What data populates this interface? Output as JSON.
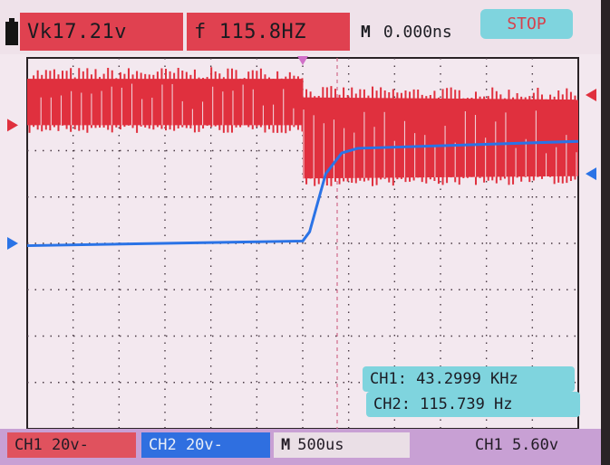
{
  "header": {
    "vk": "Vk17.21v",
    "freq_symbol": "f",
    "freq": "115.8HZ",
    "m_label": "M",
    "m_value": "0.000ns",
    "stop_label": "STOP"
  },
  "readouts": {
    "ch1": "CH1: 43.2999 KHz",
    "ch2": "CH2: 115.739 Hz"
  },
  "footer": {
    "ch1_scale": "CH1 20v-",
    "ch2_scale": "CH2 20v-",
    "m_label": "M",
    "timebase": "500us",
    "trigger": "CH1 5.60v"
  },
  "colors": {
    "ch1": "#e0303e",
    "ch2": "#2a73e6",
    "readout_bg": "#7fd4de",
    "screen_bg": "#f3e8ef",
    "footer_bg": "#c8a0d4",
    "ch2_box": "#2f6fe0"
  },
  "chart_data": {
    "type": "line",
    "grid": true,
    "series": [
      {
        "name": "CH1",
        "x_divisions": [
          0,
          6,
          6,
          12
        ],
        "top_divisions": [
          3.55,
          3.55,
          3.15,
          3.1
        ],
        "bottom_divisions": [
          2.55,
          2.55,
          1.4,
          1.45
        ]
      },
      {
        "name": "CH2",
        "x_divisions": [
          0,
          6,
          6.15,
          6.5,
          6.85,
          7.2,
          12
        ],
        "y_divisions": [
          -0.05,
          0.05,
          0.25,
          1.5,
          1.95,
          2.05,
          2.2
        ]
      }
    ]
  }
}
